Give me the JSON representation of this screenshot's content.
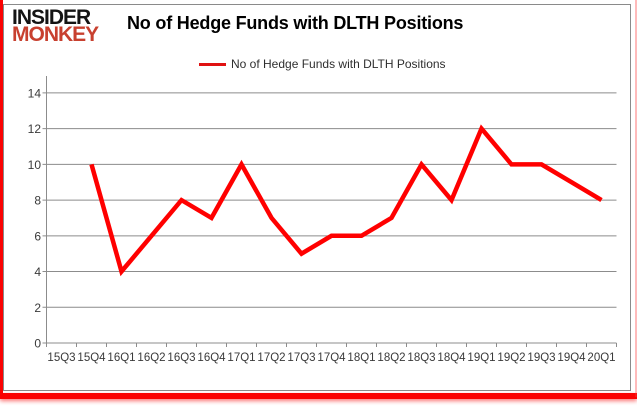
{
  "brand": {
    "line1": "INSIDER",
    "line2": "MONKEY"
  },
  "header": {
    "title": "No of Hedge Funds with DLTH Positions"
  },
  "legend": {
    "label": "No of Hedge Funds with DLTH Positions"
  },
  "colors": {
    "line": "#ff0000",
    "legend_swatch": "#e01212",
    "brand_red": "#c8402f",
    "brand_black": "#141414",
    "frame_red": "#fa0202",
    "grid": "#8c8c8c",
    "axis_text": "#3a3a3a"
  },
  "chart_data": {
    "type": "line",
    "title": "No of Hedge Funds with DLTH Positions",
    "categories": [
      "15Q3",
      "15Q4",
      "16Q1",
      "16Q2",
      "16Q3",
      "16Q4",
      "17Q1",
      "17Q2",
      "17Q3",
      "17Q4",
      "18Q1",
      "18Q2",
      "18Q3",
      "18Q4",
      "19Q1",
      "19Q2",
      "19Q3",
      "19Q4",
      "20Q1"
    ],
    "series": [
      {
        "name": "No of Hedge Funds with DLTH Positions",
        "values": [
          null,
          10,
          4,
          6,
          8,
          7,
          10,
          7,
          5,
          6,
          6,
          7,
          10,
          8,
          12,
          10,
          10,
          9,
          8
        ]
      }
    ],
    "xlabel": "",
    "ylabel": "",
    "ylim": [
      0,
      14
    ],
    "ytick_step": 2,
    "grid": true,
    "legend_position": "top"
  }
}
